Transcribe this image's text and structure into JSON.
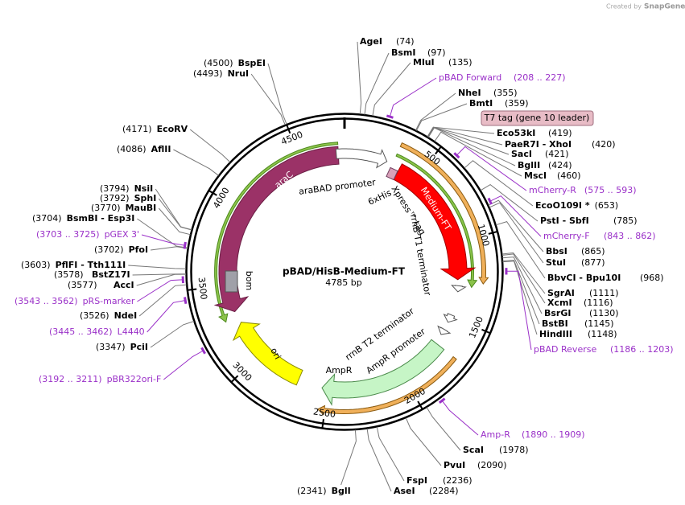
{
  "watermark": {
    "prefix": "Created by",
    "brand": "SnapGene"
  },
  "plasmid": {
    "name": "pBAD/HisB-Medium-FT",
    "length": "4785 bp"
  },
  "ring_ticks": [
    500,
    1000,
    1500,
    2000,
    2500,
    3000,
    3500,
    4000,
    4500
  ],
  "tag_label": "T7 tag (gene 10 leader)",
  "features": [
    {
      "label": "araC"
    },
    {
      "label": "araBAD promoter"
    },
    {
      "label": "6xHis"
    },
    {
      "label": "Xpress™ tag"
    },
    {
      "label": "Medium-FT"
    },
    {
      "label": "rrnB T1 terminator"
    },
    {
      "label": "rrnB T2 terminator"
    },
    {
      "label": "AmpR promoter"
    },
    {
      "label": "AmpR"
    },
    {
      "label": "ori"
    },
    {
      "label": "bom"
    }
  ],
  "sites": [
    {
      "name": "AgeI",
      "pos": "(74)"
    },
    {
      "name": "BsmI",
      "pos": "(97)"
    },
    {
      "name": "MluI",
      "pos": "(135)"
    },
    {
      "name": "NheI",
      "pos": "(355)"
    },
    {
      "name": "BmtI",
      "pos": "(359)"
    },
    {
      "name": "Eco53kI",
      "pos": "(419)"
    },
    {
      "name": "PaeR7I - XhoI",
      "pos": "(420)"
    },
    {
      "name": "SacI",
      "pos": "(421)"
    },
    {
      "name": "BglII",
      "pos": "(424)"
    },
    {
      "name": "MscI",
      "pos": "(460)"
    },
    {
      "name": "EcoO109I *",
      "pos": "(653)"
    },
    {
      "name": "PstI - SbfI",
      "pos": "(785)"
    },
    {
      "name": "BbsI",
      "pos": "(865)"
    },
    {
      "name": "StuI",
      "pos": "(877)"
    },
    {
      "name": "BbvCI - Bpu10I",
      "pos": "(968)"
    },
    {
      "name": "SgrAI",
      "pos": "(1111)"
    },
    {
      "name": "XcmI",
      "pos": "(1116)"
    },
    {
      "name": "BsrGI",
      "pos": "(1130)"
    },
    {
      "name": "BstBI",
      "pos": "(1145)"
    },
    {
      "name": "HindIII",
      "pos": "(1148)"
    },
    {
      "name": "ScaI",
      "pos": "(1978)"
    },
    {
      "name": "PvuI",
      "pos": "(2090)"
    },
    {
      "name": "FspI",
      "pos": "(2236)"
    },
    {
      "name": "AseI",
      "pos": "(2284)"
    },
    {
      "name": "BglI",
      "pos": "(2341)"
    },
    {
      "name": "BspEI",
      "pos": "(4500)"
    },
    {
      "name": "NruI",
      "pos": "(4493)"
    },
    {
      "name": "EcoRV",
      "pos": "(4171)"
    },
    {
      "name": "AflII",
      "pos": "(4086)"
    },
    {
      "name": "NsiI",
      "pos": "(3794)"
    },
    {
      "name": "SphI",
      "pos": "(3792)"
    },
    {
      "name": "MauBI",
      "pos": "(3770)"
    },
    {
      "name": "BsmBI - Esp3I",
      "pos": "(3704)"
    },
    {
      "name": "PfoI",
      "pos": "(3702)"
    },
    {
      "name": "PflFI - Tth111I",
      "pos": "(3603)"
    },
    {
      "name": "BstZ17I",
      "pos": "(3578)"
    },
    {
      "name": "AccI",
      "pos": "(3577)"
    },
    {
      "name": "NdeI",
      "pos": "(3526)"
    },
    {
      "name": "PciI",
      "pos": "(3347)"
    }
  ],
  "primers": [
    {
      "name": "pBAD Forward",
      "range": "(208 .. 227)"
    },
    {
      "name": "mCherry-R",
      "range": "(575 .. 593)"
    },
    {
      "name": "mCherry-F",
      "range": "(843 .. 862)"
    },
    {
      "name": "pBAD Reverse",
      "range": "(1186 .. 1203)"
    },
    {
      "name": "Amp-R",
      "range": "(1890 .. 1909)"
    },
    {
      "name": "pGEX 3'",
      "range": "(3703 .. 3725)"
    },
    {
      "name": "pRS-marker",
      "range": "(3543 .. 3562)"
    },
    {
      "name": "L4440",
      "range": "(3445 .. 3462)"
    },
    {
      "name": "pBR322ori-F",
      "range": "(3192 .. 3211)"
    }
  ]
}
